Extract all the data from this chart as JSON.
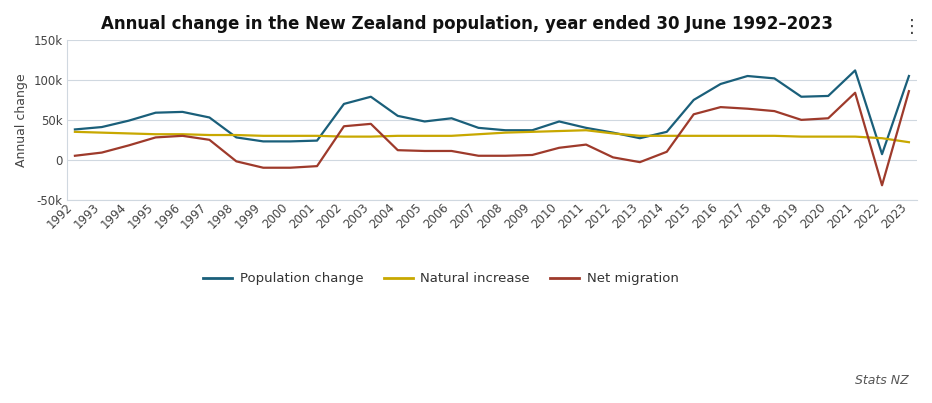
{
  "title": "Annual change in the New Zealand population, year ended 30 June 1992–2023",
  "ylabel": "Annual change",
  "years": [
    1992,
    1993,
    1994,
    1995,
    1996,
    1997,
    1998,
    1999,
    2000,
    2001,
    2002,
    2003,
    2004,
    2005,
    2006,
    2007,
    2008,
    2009,
    2010,
    2011,
    2012,
    2013,
    2014,
    2015,
    2016,
    2017,
    2018,
    2019,
    2020,
    2021,
    2022,
    2023
  ],
  "population_change": [
    38000,
    41000,
    49000,
    59000,
    60000,
    53000,
    28000,
    23000,
    23000,
    24000,
    70000,
    79000,
    55000,
    48000,
    52000,
    40000,
    37000,
    37000,
    48000,
    40000,
    34000,
    27000,
    35000,
    75000,
    95000,
    105000,
    102000,
    79000,
    80000,
    112000,
    7000,
    105000
  ],
  "natural_increase": [
    35000,
    34000,
    33000,
    32000,
    32000,
    31000,
    31000,
    30000,
    30000,
    30000,
    29000,
    29000,
    30000,
    30000,
    30000,
    32000,
    34000,
    35000,
    36000,
    37000,
    33000,
    30000,
    30000,
    30000,
    30000,
    30000,
    30000,
    29000,
    29000,
    29000,
    27000,
    22000
  ],
  "net_migration": [
    5000,
    9000,
    18000,
    28000,
    30000,
    25000,
    -2000,
    -10000,
    -10000,
    -8000,
    42000,
    45000,
    12000,
    11000,
    11000,
    5000,
    5000,
    6000,
    15000,
    19000,
    3000,
    -3000,
    10000,
    57000,
    66000,
    64000,
    61000,
    50000,
    52000,
    84000,
    -32000,
    86000
  ],
  "population_change_color": "#1a5f7a",
  "natural_increase_color": "#c8a800",
  "net_migration_color": "#9e3a2b",
  "background_color": "#ffffff",
  "grid_color": "#d0d8e0",
  "ylim": [
    -50000,
    150000
  ],
  "yticks": [
    -50000,
    0,
    50000,
    100000,
    150000
  ],
  "title_fontsize": 12,
  "axis_label_fontsize": 9,
  "tick_fontsize": 8.5,
  "legend_fontsize": 9.5,
  "watermark": "Stats NZ"
}
